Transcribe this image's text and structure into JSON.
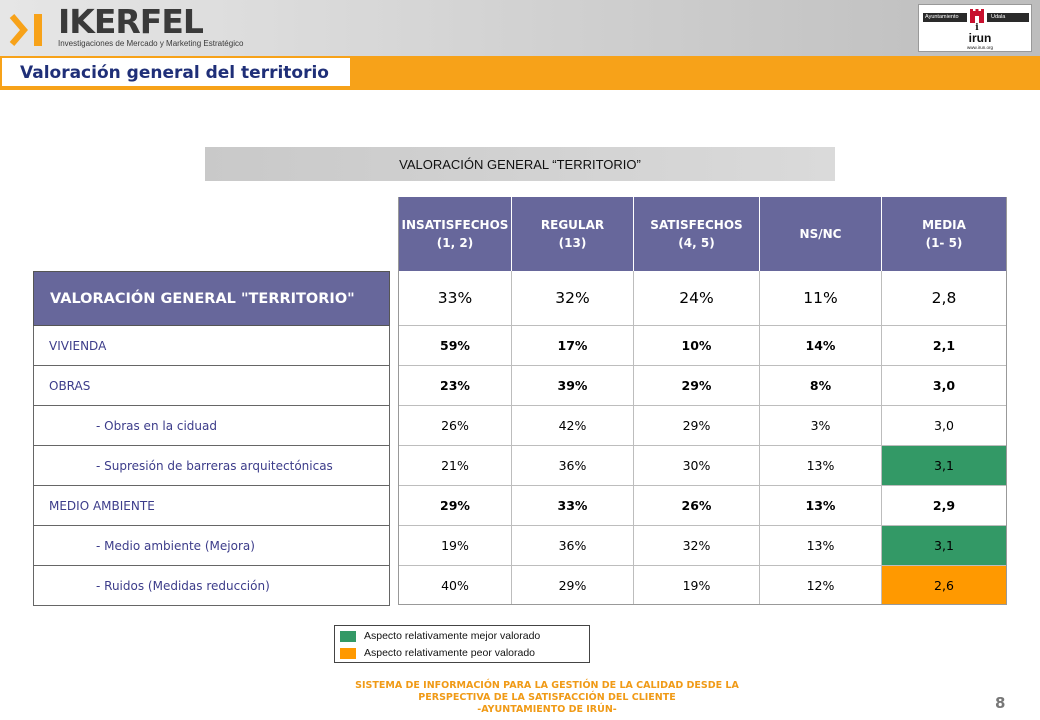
{
  "header": {
    "logo_name": "IKERFEL",
    "logo_subtitle": "Investigaciones de Mercado y Marketing Estratégico",
    "page_title": "Valoración general del territorio",
    "client_logo": {
      "left_text": "Ayuntamiento",
      "right_text": "Udala",
      "name": "irun",
      "url": "www.irun.org"
    }
  },
  "section_title": "VALORACIÓN GENERAL “TERRITORIO”",
  "table": {
    "columns": [
      {
        "line1": "INSATISFECHOS",
        "line2": "(1, 2)"
      },
      {
        "line1": "REGULAR",
        "line2": "(13)"
      },
      {
        "line1": "SATISFECHOS",
        "line2": "(4, 5)"
      },
      {
        "line1": "NS/NC",
        "line2": ""
      },
      {
        "line1": "MEDIA",
        "line2": "(1- 5)"
      }
    ],
    "total_label": "VALORACIÓN GENERAL \"TERRITORIO\"",
    "total_values": [
      "33%",
      "32%",
      "24%",
      "11%",
      "2,8"
    ],
    "rows": [
      {
        "label": "VIVIENDA",
        "values": [
          "59%",
          "17%",
          "10%",
          "14%",
          "2,1"
        ]
      },
      {
        "label": "OBRAS",
        "values": [
          "23%",
          "39%",
          "29%",
          "8%",
          "3,0"
        ]
      },
      {
        "label": "- Obras en la ciduad",
        "values": [
          "26%",
          "42%",
          "29%",
          "3%",
          "3,0"
        ]
      },
      {
        "label": "- Supresión de barreras arquitectónicas",
        "values": [
          "21%",
          "36%",
          "30%",
          "13%",
          "3,1"
        ]
      },
      {
        "label": "MEDIO AMBIENTE",
        "values": [
          "29%",
          "33%",
          "26%",
          "13%",
          "2,9"
        ]
      },
      {
        "label": "- Medio ambiente (Mejora)",
        "values": [
          "19%",
          "36%",
          "32%",
          "13%",
          "3,1"
        ]
      },
      {
        "label": "- Ruidos (Medidas reducción)",
        "values": [
          "40%",
          "29%",
          "19%",
          "12%",
          "2,6"
        ]
      }
    ]
  },
  "legend": {
    "better_label": "Aspecto relativamente mejor valorado",
    "worse_label": "Aspecto relativamente peor valorado"
  },
  "colors": {
    "accent_orange": "#f7a219",
    "header_purple": "#67679b",
    "better_green": "#339966",
    "worse_orange": "#ff9900",
    "title_blue": "#1f2f78"
  },
  "footer": {
    "line1": "SISTEMA DE INFORMACIÓN PARA LA GESTIÓN DE LA CALIDAD DESDE LA",
    "line2": "PERSPECTIVA DE LA SATISFACCIÓN DEL CLIENTE",
    "line3": "-AYUNTAMIENTO DE IRÚN-",
    "page_number": "8"
  }
}
